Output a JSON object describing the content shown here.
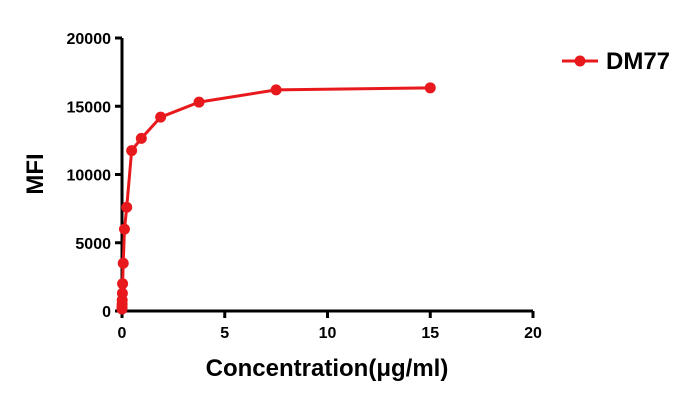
{
  "chart_data": {
    "type": "line",
    "title": "",
    "xlabel": "Concentration(μg/ml)",
    "ylabel": "MFI",
    "xlim": [
      0,
      20
    ],
    "ylim": [
      0,
      20000
    ],
    "xticks": [
      0,
      5,
      10,
      15,
      20
    ],
    "yticks": [
      0,
      5000,
      10000,
      15000,
      20000
    ],
    "grid": false,
    "legend_position": "top-right",
    "series": [
      {
        "name": "DM77",
        "color": "#e8191c",
        "x": [
          0.0,
          0.002,
          0.005,
          0.01,
          0.02,
          0.03,
          0.06,
          0.12,
          0.23,
          0.47,
          0.94,
          1.88,
          3.75,
          7.5,
          15.0
        ],
        "y": [
          150,
          300,
          500,
          800,
          1300,
          2000,
          3500,
          6000,
          7600,
          11750,
          12650,
          14200,
          15300,
          16200,
          16350
        ]
      }
    ]
  }
}
